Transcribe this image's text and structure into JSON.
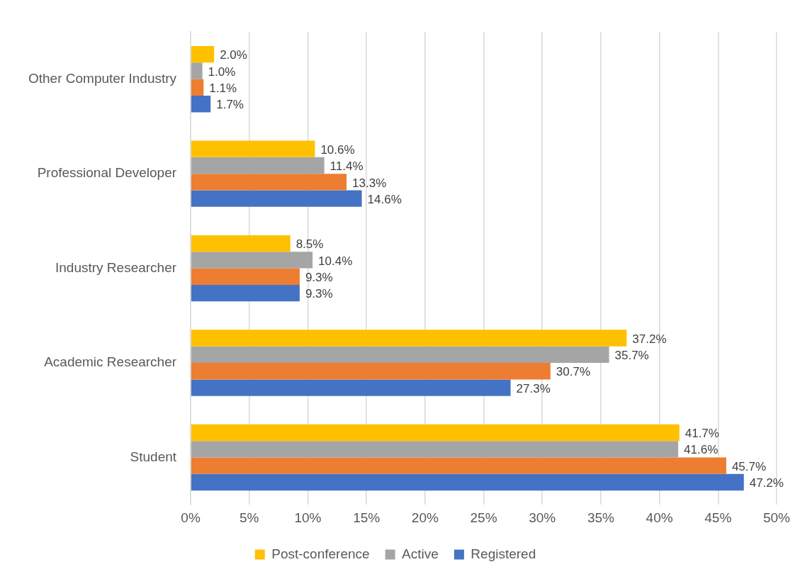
{
  "chart_data": {
    "type": "bar",
    "orientation": "horizontal",
    "categories": [
      "Other Computer Industry",
      "Professional Developer",
      "Industry Researcher",
      "Academic Researcher",
      "Student"
    ],
    "series": [
      {
        "name": "Post-conference",
        "color": "#ffc000",
        "values": [
          2.0,
          10.6,
          8.5,
          37.2,
          41.7
        ],
        "value_labels": [
          "2.0%",
          "10.6%",
          "8.5%",
          "37.2%",
          "41.7%"
        ]
      },
      {
        "name": "Active",
        "color": "#a5a5a5",
        "values": [
          1.0,
          11.4,
          10.4,
          35.7,
          41.6
        ],
        "value_labels": [
          "1.0%",
          "11.4%",
          "10.4%",
          "35.7%",
          "41.6%"
        ]
      },
      {
        "color": "#ed7d31",
        "values": [
          1.1,
          13.3,
          9.3,
          30.7,
          45.7
        ],
        "value_labels": [
          "1.1%",
          "13.3%",
          "9.3%",
          "30.7%",
          "45.7%"
        ]
      },
      {
        "name": "Registered",
        "color": "#4472c4",
        "values": [
          1.7,
          14.6,
          9.3,
          27.3,
          47.2
        ],
        "value_labels": [
          "1.7%",
          "14.6%",
          "9.3%",
          "27.3%",
          "47.2%"
        ]
      }
    ],
    "xlim": [
      0,
      50
    ],
    "xticks": [
      {
        "value": 0,
        "label": "0%"
      },
      {
        "value": 5,
        "label": "5%"
      },
      {
        "value": 10,
        "label": "10%"
      },
      {
        "value": 15,
        "label": "15%"
      },
      {
        "value": 20,
        "label": "20%"
      },
      {
        "value": 25,
        "label": "25%"
      },
      {
        "value": 30,
        "label": "30%"
      },
      {
        "value": 35,
        "label": "35%"
      },
      {
        "value": 40,
        "label": "40%"
      },
      {
        "value": 45,
        "label": "45%"
      },
      {
        "value": 50,
        "label": "50%"
      }
    ],
    "grid": "x",
    "legend": "bottom"
  }
}
